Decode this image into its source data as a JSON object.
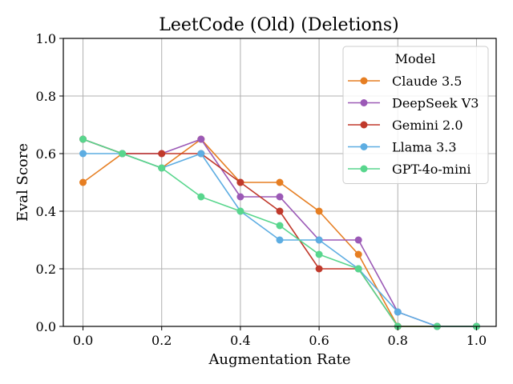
{
  "chart_data": {
    "type": "line",
    "title": "LeetCode (Old) (Deletions)",
    "xlabel": "Augmentation Rate",
    "ylabel": "Eval Score",
    "x": [
      0.0,
      0.1,
      0.2,
      0.3,
      0.4,
      0.5,
      0.6,
      0.7,
      0.8,
      0.9,
      1.0
    ],
    "xlim": [
      -0.05,
      1.05
    ],
    "ylim": [
      0.0,
      1.0
    ],
    "xticks": [
      0.0,
      0.2,
      0.4,
      0.6,
      0.8,
      1.0
    ],
    "xtick_labels": [
      "0.0",
      "0.2",
      "0.4",
      "0.6",
      "0.8",
      "1.0"
    ],
    "yticks": [
      0.0,
      0.2,
      0.4,
      0.6,
      0.8,
      1.0
    ],
    "ytick_labels": [
      "0.0",
      "0.2",
      "0.4",
      "0.6",
      "0.8",
      "1.0"
    ],
    "grid": true,
    "legend": {
      "title": "Model",
      "placement": "top-right"
    },
    "series": [
      {
        "name": "Claude 3.5",
        "color": "#e67e22",
        "values": [
          0.5,
          0.6,
          0.55,
          0.65,
          0.5,
          0.5,
          0.4,
          0.25,
          0.0,
          0.0,
          0.0
        ]
      },
      {
        "name": "DeepSeek V3",
        "color": "#9b59b6",
        "values": [
          0.65,
          0.6,
          0.6,
          0.65,
          0.45,
          0.45,
          0.3,
          0.3,
          0.05,
          0.0,
          0.0
        ]
      },
      {
        "name": "Gemini 2.0",
        "color": "#c0392b",
        "values": [
          0.65,
          0.6,
          0.6,
          0.6,
          0.5,
          0.4,
          0.2,
          0.2,
          0.0,
          0.0,
          0.0
        ]
      },
      {
        "name": "Llama 3.3",
        "color": "#5dade2",
        "values": [
          0.6,
          0.6,
          0.55,
          0.6,
          0.4,
          0.3,
          0.3,
          0.2,
          0.05,
          0.0,
          0.0
        ]
      },
      {
        "name": "GPT-4o-mini",
        "color": "#58d68d",
        "values": [
          0.65,
          0.6,
          0.55,
          0.45,
          0.4,
          0.35,
          0.25,
          0.2,
          0.0,
          0.0,
          0.0
        ]
      }
    ]
  }
}
